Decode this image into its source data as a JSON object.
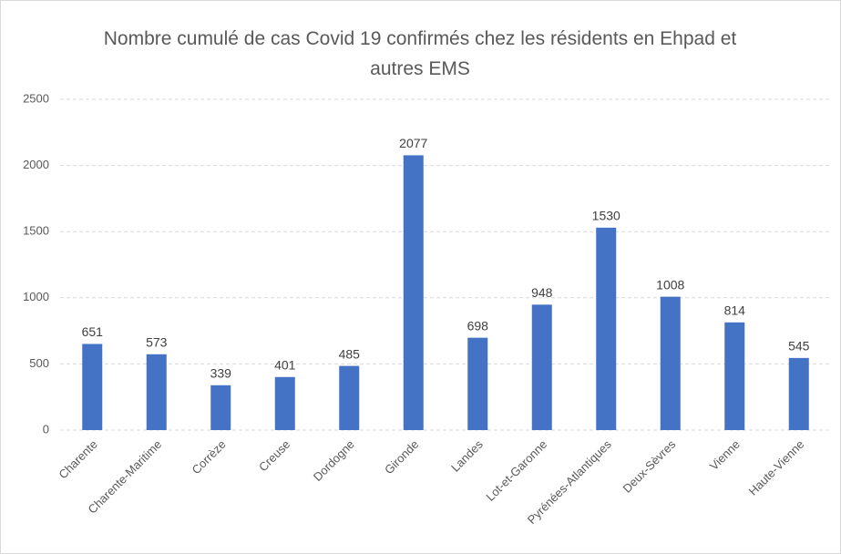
{
  "chart_data": {
    "type": "bar",
    "title": "Nombre cumulé de cas Covid 19 confirmés chez les résidents en Ehpad et autres EMS",
    "categories": [
      "Charente",
      "Charente-Maritime",
      "Corrèze",
      "Creuse",
      "Dordogne",
      "Gironde",
      "Landes",
      "Lot-et-Garonne",
      "Pyrénées-Atlantiques",
      "Deux-Sèvres",
      "Vienne",
      "Haute-Vienne"
    ],
    "values": [
      651,
      573,
      339,
      401,
      485,
      2077,
      698,
      948,
      1530,
      1008,
      814,
      545
    ],
    "color": "#4472c4",
    "ylim": [
      0,
      2500
    ],
    "yticks": [
      0,
      500,
      1000,
      1500,
      2000,
      2500
    ],
    "grid": true
  }
}
